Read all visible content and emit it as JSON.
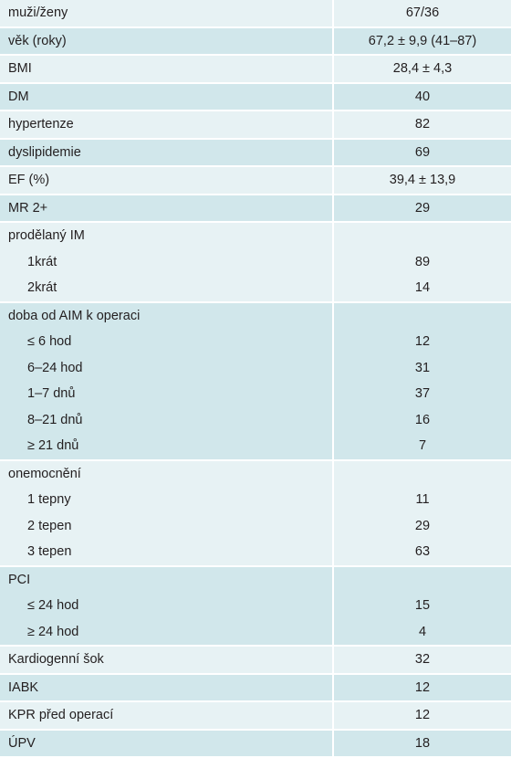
{
  "table": {
    "groups": [
      {
        "label": "muži/ženy",
        "value": "67/36"
      },
      {
        "label": "věk (roky)",
        "value": "67,2 ± 9,9 (41–87)"
      },
      {
        "label": "BMI",
        "value": "28,4 ± 4,3"
      },
      {
        "label": "DM",
        "value": "40"
      },
      {
        "label": "hypertenze",
        "value": "82"
      },
      {
        "label": "dyslipidemie",
        "value": "69"
      },
      {
        "label": "EF (%)",
        "value": "39,4 ± 13,9"
      },
      {
        "label": "MR 2+",
        "value": "29"
      },
      {
        "label": "prodělaný IM",
        "items": [
          {
            "label": "1krát",
            "value": "89"
          },
          {
            "label": "2krát",
            "value": "14"
          }
        ]
      },
      {
        "label": "doba od AIM k operaci",
        "items": [
          {
            "label": "≤ 6 hod",
            "value": "12"
          },
          {
            "label": "6–24 hod",
            "value": "31"
          },
          {
            "label": "1–7 dnů",
            "value": "37"
          },
          {
            "label": "8–21 dnů",
            "value": "16"
          },
          {
            "label": "≥ 21 dnů",
            "value": "7"
          }
        ]
      },
      {
        "label": "onemocnění",
        "items": [
          {
            "label": "1 tepny",
            "value": "11"
          },
          {
            "label": "2 tepen",
            "value": "29"
          },
          {
            "label": "3 tepen",
            "value": "63"
          }
        ]
      },
      {
        "label": "PCI",
        "items": [
          {
            "label": "≤ 24 hod",
            "value": "15"
          },
          {
            "label": "≥ 24 hod",
            "value": "4"
          }
        ]
      },
      {
        "label": "Kardiogenní šok",
        "value": "32"
      },
      {
        "label": "IABK",
        "value": "12"
      },
      {
        "label": "KPR před operací",
        "value": "12"
      },
      {
        "label": "ÚPV",
        "value": "18"
      }
    ]
  }
}
